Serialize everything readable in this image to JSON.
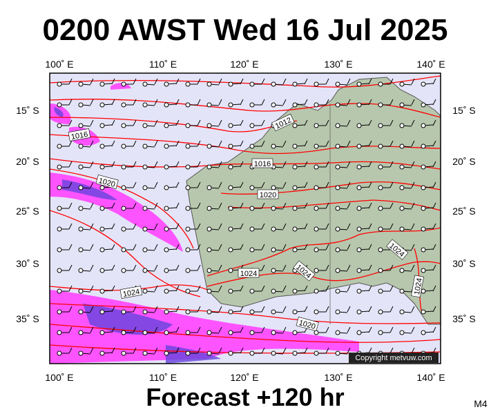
{
  "title": "0200 AWST Wed 16 Jul 2025",
  "footer": "Forecast +120 hr",
  "model": "M4",
  "lon_labels": [
    "100˚ E",
    "110˚ E",
    "120˚ E",
    "130˚ E",
    "140˚ E"
  ],
  "lat_labels": [
    "15˚ S",
    "20˚ S",
    "25˚ S",
    "30˚ S",
    "35˚ S"
  ],
  "isobar_labels": [
    "1016",
    "1020",
    "1012",
    "1016",
    "1020",
    "1024",
    "1024",
    "1024",
    "1024",
    "1024",
    "1020"
  ],
  "copyright": "Copyright metvuw.com"
}
